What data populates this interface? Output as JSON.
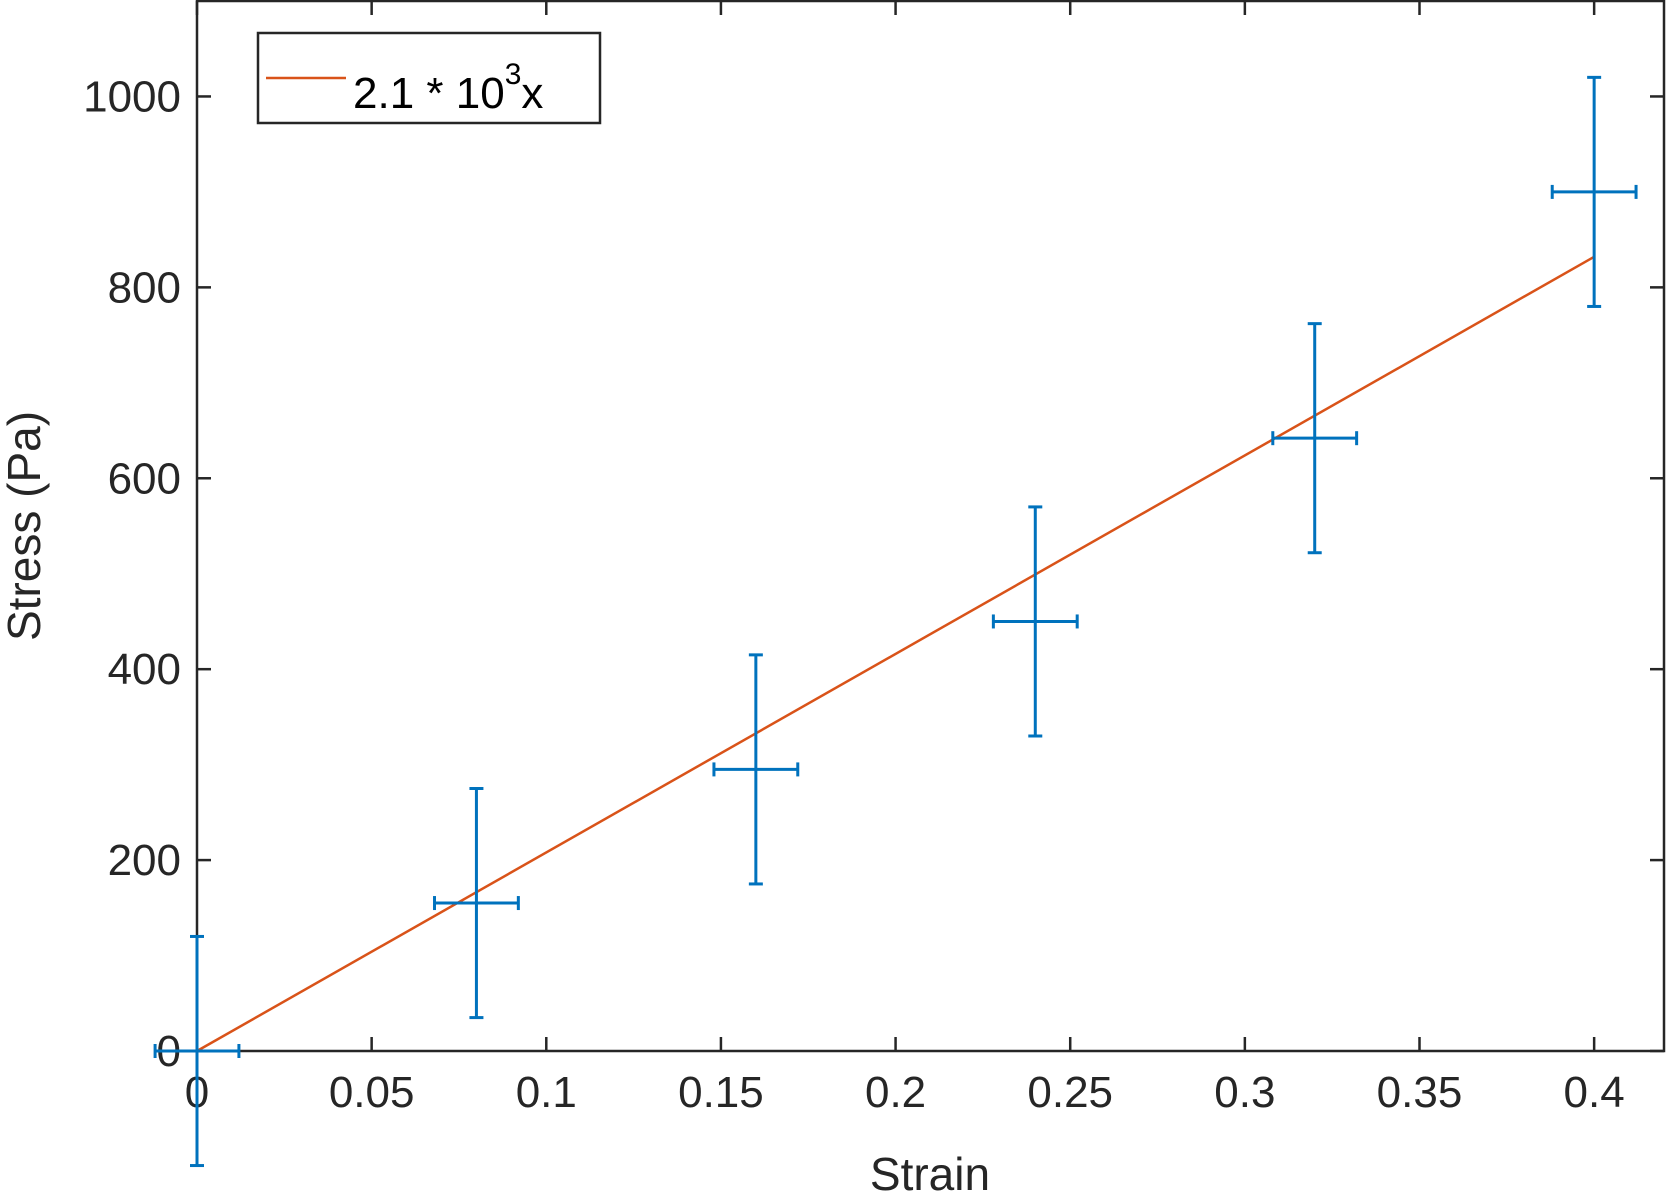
{
  "chart_data": {
    "type": "scatter",
    "title": "",
    "xlabel": "Strain",
    "ylabel": "Stress (Pa)",
    "xlim": [
      0,
      0.42
    ],
    "ylim": [
      0,
      1100
    ],
    "xticks": [
      0,
      0.05,
      0.1,
      0.15,
      0.2,
      0.25,
      0.3,
      0.35,
      0.4
    ],
    "xtick_labels": [
      "0",
      "0.05",
      "0.1",
      "0.15",
      "0.2",
      "0.25",
      "0.3",
      "0.35",
      "0.4"
    ],
    "yticks": [
      0,
      200,
      400,
      600,
      800,
      1000
    ],
    "ytick_labels": [
      "0",
      "200",
      "400",
      "600",
      "800",
      "1000"
    ],
    "grid": false,
    "legend_position": "top-left",
    "series": [
      {
        "kind": "errorbar",
        "color": "#0072BD",
        "points": [
          {
            "x": 0.0,
            "y": 0,
            "xerr": 0.012,
            "yerr": 120
          },
          {
            "x": 0.08,
            "y": 155,
            "xerr": 0.012,
            "yerr": 120
          },
          {
            "x": 0.16,
            "y": 295,
            "xerr": 0.012,
            "yerr": 120
          },
          {
            "x": 0.24,
            "y": 450,
            "xerr": 0.012,
            "yerr": 120
          },
          {
            "x": 0.32,
            "y": 642,
            "xerr": 0.012,
            "yerr": 120
          },
          {
            "x": 0.4,
            "y": 900,
            "xerr": 0.012,
            "yerr": 120
          }
        ]
      },
      {
        "kind": "line",
        "color": "#D95319",
        "legend_main": "2.1 * 10",
        "legend_sup": "3",
        "legend_tail": "x",
        "x": [
          0,
          0.4
        ],
        "y": [
          0,
          832
        ]
      }
    ]
  }
}
